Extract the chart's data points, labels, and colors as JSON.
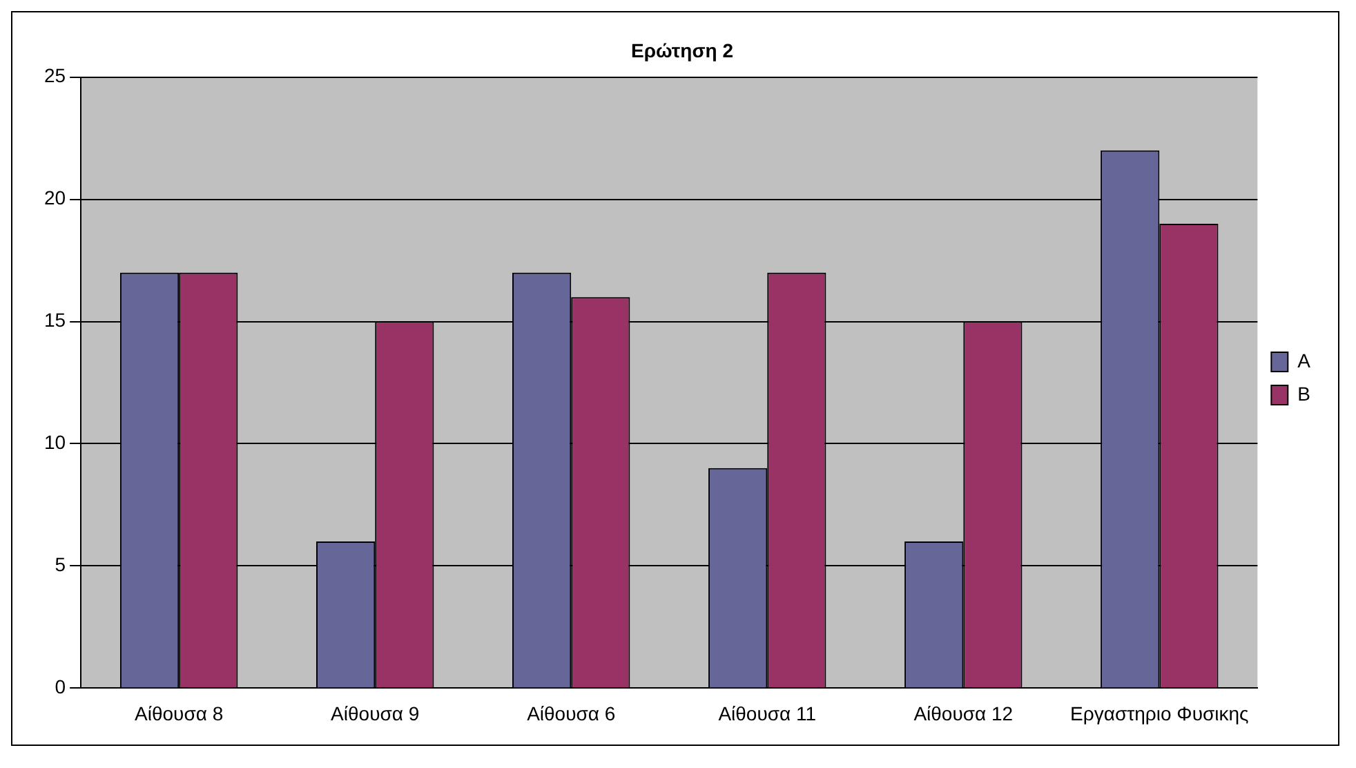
{
  "chart_data": {
    "type": "bar",
    "title": "Ερώτηση 2",
    "categories": [
      "Αίθουσα 8",
      "Αίθουσα 9",
      "Αίθουσα 6",
      "Αίθουσα 11",
      "Αίθουσα 12",
      "Εργαστηριο Φυσικης"
    ],
    "series": [
      {
        "name": "A",
        "color": "#666699",
        "values": [
          17,
          6,
          17,
          9,
          6,
          22
        ]
      },
      {
        "name": "B",
        "color": "#993366",
        "values": [
          17,
          15,
          16,
          17,
          15,
          19
        ]
      }
    ],
    "ylim": [
      0,
      25
    ],
    "yticks": [
      0,
      5,
      10,
      15,
      20,
      25
    ],
    "grid": "y",
    "legend": "right"
  }
}
